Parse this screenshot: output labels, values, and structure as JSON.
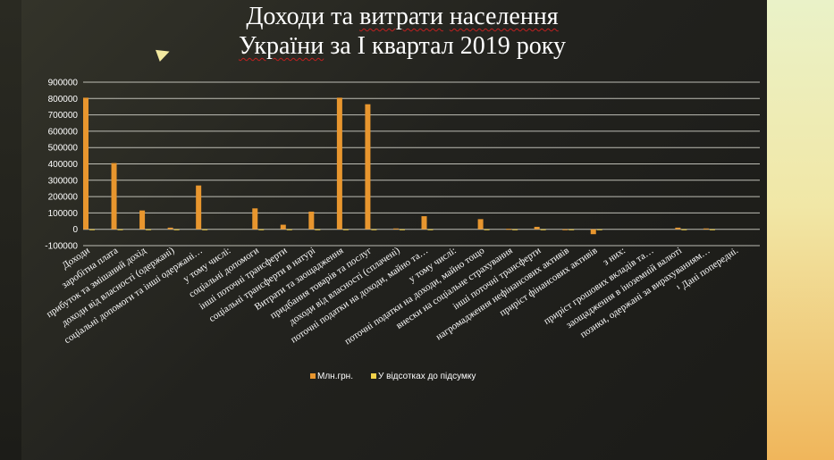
{
  "slide": {
    "title_line1_a": "Доходи та ",
    "title_line1_b": "витрати",
    "title_line1_c": " ",
    "title_line1_d": "населення",
    "title_line2_a": "України",
    "title_line2_b": " за I квартал 2019 року",
    "colors": {
      "accent_panel": "#f1e7a6",
      "background": "#22221e"
    }
  },
  "chart_data": {
    "type": "bar",
    "title": "",
    "xlabel": "",
    "ylabel": "",
    "ylim": [
      -100000,
      900000
    ],
    "yticks": [
      -100000,
      0,
      100000,
      200000,
      300000,
      400000,
      500000,
      600000,
      700000,
      800000,
      900000
    ],
    "grid": true,
    "legend_position": "bottom",
    "categories": [
      "Доходи",
      "заробітна плата",
      "прибуток та змішаний дохід",
      "доходи від власності (одержані)",
      "соціальні допомоги та інші одержані…",
      "у тому числі:",
      "соціальні допомоги",
      "інші поточні трансферти",
      "соціальні трансферти в натурі",
      "Витрати та заощадження",
      "придбання товарів та послуг",
      "доходи від власності (сплачені)",
      "поточні податки на доходи, майно та…",
      "у тому числі:",
      "поточні податки на доходи, майно тощо",
      "внески на соціальне страхування",
      "інші поточні трансферти",
      "нагромадження нефінансових активів",
      "приріст фінансових активів",
      "з них:",
      "приріст грошових вкладів та…",
      "заощадження в іноземній валюті",
      "позики, одержані за вирахуванням…",
      "¹ Дані попередні."
    ],
    "series": [
      {
        "name": "Млн.грн.",
        "color": "#e8962e",
        "values": [
          805000,
          405000,
          115000,
          10000,
          268000,
          0,
          128000,
          28000,
          108000,
          805000,
          765000,
          5000,
          80000,
          0,
          62000,
          3000,
          15000,
          -5000,
          -30000,
          0,
          0,
          10000,
          5000,
          0
        ]
      },
      {
        "name": "У відсотках до підсумку",
        "color": "#f2d24a",
        "values": [
          100,
          50.3,
          14.3,
          1.2,
          33.3,
          0,
          15.9,
          3.5,
          13.4,
          100,
          95,
          0.6,
          9.9,
          0,
          7.7,
          0.4,
          1.9,
          -0.6,
          -3.7,
          0,
          0,
          1.2,
          0.6,
          0
        ]
      }
    ]
  }
}
